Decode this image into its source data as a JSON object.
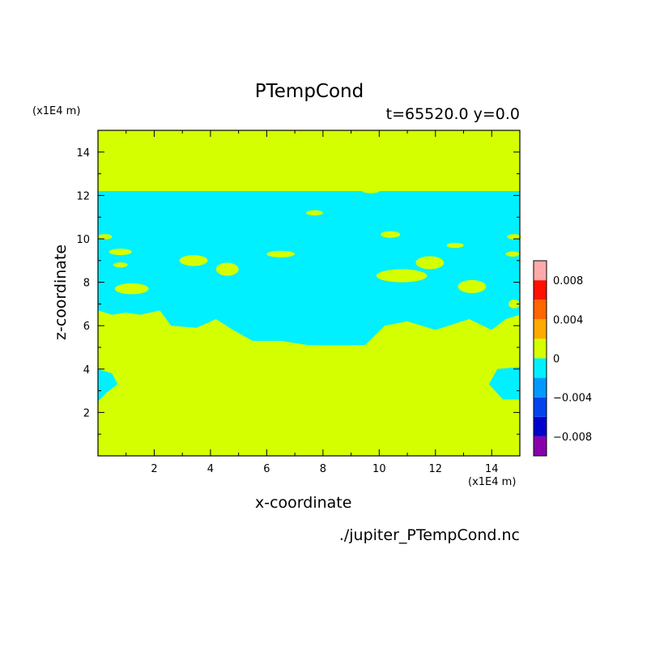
{
  "title": "PTempCond",
  "subtitle": "t=65520.0 y=0.0",
  "footer": "./jupiter_PTempCond.nc",
  "chart_data": {
    "type": "heatmap",
    "title": "PTempCond",
    "xlabel": "x-coordinate",
    "ylabel": "z-coordinate",
    "x_unit": "(x1E4 m)",
    "y_unit": "(x1E4 m)",
    "xlim": [
      0,
      15
    ],
    "ylim": [
      0,
      15
    ],
    "xticks": [
      2,
      4,
      6,
      8,
      10,
      12,
      14
    ],
    "yticks": [
      2,
      4,
      6,
      8,
      10,
      12,
      14
    ],
    "background_level_color": "#d4ff00",
    "negative_level_color": "#00f0ff",
    "colorbar": {
      "colors": [
        "#8800aa",
        "#0000cc",
        "#0044ee",
        "#0099ff",
        "#00f0ff",
        "#d4ff00",
        "#ffaa00",
        "#ff6600",
        "#ff1100",
        "#ffaaaa"
      ],
      "tick_values": [
        0.008,
        0.004,
        0,
        -0.004,
        -0.008
      ],
      "tick_labels": [
        "0.008",
        "0.004",
        "0",
        "−0.004",
        "−0.008"
      ],
      "range": [
        -0.01,
        0.01
      ]
    },
    "region_value_minus_band": {
      "description_level": -0.002,
      "z_top": 12.2,
      "z_bottom_profile": [
        [
          0.0,
          6.7
        ],
        [
          0.5,
          6.5
        ],
        [
          1.0,
          6.6
        ],
        [
          1.5,
          6.5
        ],
        [
          2.2,
          6.7
        ],
        [
          2.6,
          6.0
        ],
        [
          3.5,
          5.9
        ],
        [
          4.2,
          6.3
        ],
        [
          4.8,
          5.8
        ],
        [
          5.5,
          5.3
        ],
        [
          6.5,
          5.3
        ],
        [
          7.5,
          5.1
        ],
        [
          9.5,
          5.1
        ],
        [
          10.2,
          6.0
        ],
        [
          11.0,
          6.2
        ],
        [
          12.0,
          5.8
        ],
        [
          13.2,
          6.3
        ],
        [
          14.0,
          5.8
        ],
        [
          14.5,
          6.3
        ],
        [
          15.0,
          6.5
        ]
      ]
    }
  }
}
